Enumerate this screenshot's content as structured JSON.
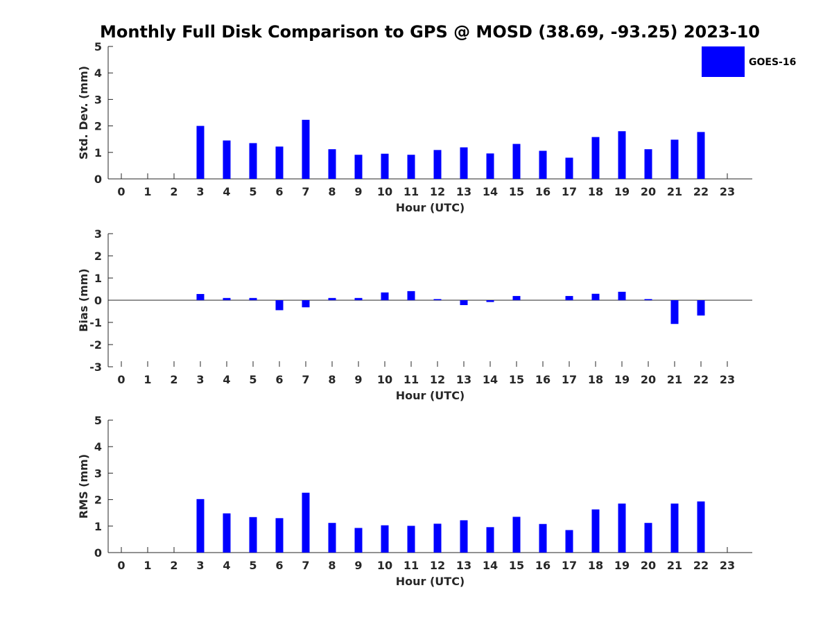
{
  "chart_data": {
    "type": "bar",
    "title": "Monthly Full Disk Comparison to GPS @ MOSD (38.69, -93.25) 2023-10",
    "legend": {
      "label": "GOES-16",
      "color": "#0000ff",
      "placement": "top-right"
    },
    "categories": [
      "0",
      "1",
      "2",
      "3",
      "4",
      "5",
      "6",
      "7",
      "8",
      "9",
      "10",
      "11",
      "12",
      "13",
      "14",
      "15",
      "16",
      "17",
      "18",
      "19",
      "20",
      "21",
      "22",
      "23"
    ],
    "panels": [
      {
        "id": "std",
        "ylabel": "Std. Dev. (mm)",
        "xlabel": "Hour (UTC)",
        "ylim": [
          0,
          5
        ],
        "yticks": [
          "0",
          "1",
          "2",
          "3",
          "4",
          "5"
        ],
        "series": [
          {
            "name": "GOES-16",
            "values": [
              null,
              null,
              null,
              2.0,
              1.45,
              1.35,
              1.22,
              2.23,
              1.12,
              0.91,
              0.95,
              0.91,
              1.09,
              1.19,
              0.96,
              1.32,
              1.06,
              0.8,
              1.58,
              1.8,
              1.12,
              1.48,
              1.77,
              null
            ]
          }
        ]
      },
      {
        "id": "bias",
        "ylabel": "Bias (mm)",
        "xlabel": "Hour (UTC)",
        "ylim": [
          -3,
          3
        ],
        "yticks": [
          "-3",
          "-2",
          "-1",
          "0",
          "1",
          "2",
          "3"
        ],
        "series": [
          {
            "name": "GOES-16",
            "values": [
              null,
              null,
              null,
              0.28,
              0.1,
              0.1,
              -0.45,
              -0.32,
              0.1,
              0.1,
              0.35,
              0.41,
              0.05,
              -0.22,
              -0.08,
              0.19,
              0.0,
              0.19,
              0.29,
              0.38,
              0.05,
              -1.07,
              -0.69,
              null
            ]
          }
        ]
      },
      {
        "id": "rms",
        "ylabel": "RMS (mm)",
        "xlabel": "Hour (UTC)",
        "ylim": [
          0,
          5
        ],
        "yticks": [
          "0",
          "1",
          "2",
          "3",
          "4",
          "5"
        ],
        "series": [
          {
            "name": "GOES-16",
            "values": [
              null,
              null,
              null,
              2.02,
              1.48,
              1.34,
              1.3,
              2.26,
              1.12,
              0.93,
              1.03,
              1.01,
              1.09,
              1.22,
              0.96,
              1.35,
              1.08,
              0.85,
              1.63,
              1.85,
              1.12,
              1.85,
              1.93,
              null
            ]
          }
        ]
      }
    ]
  }
}
